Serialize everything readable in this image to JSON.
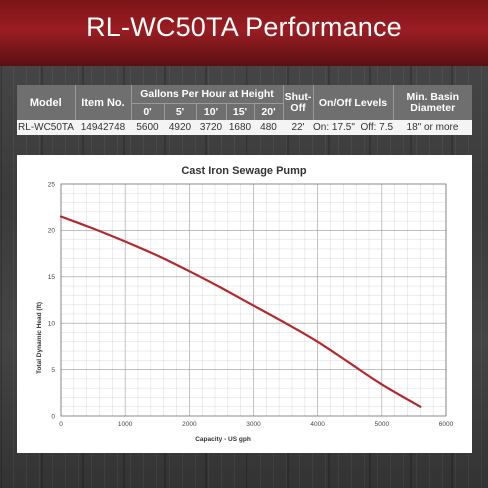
{
  "header": {
    "title": "RL-WC50TA Performance"
  },
  "specs": {
    "col_model": "Model",
    "col_item": "Item No.",
    "col_gph": "Gallons Per Hour at Height",
    "heights": [
      "0'",
      "5'",
      "10'",
      "15'",
      "20'"
    ],
    "col_shutoff_1": "Shut-",
    "col_shutoff_2": "Off",
    "col_levels": "On/Off Levels",
    "col_basin_1": "Min. Basin",
    "col_basin_2": "Diameter",
    "row": {
      "model": "RL-WC50TA",
      "item": "14942748",
      "gph": [
        "5600",
        "4920",
        "3720",
        "1680",
        "480"
      ],
      "shutoff": "22'",
      "levels": "On: 17.5\"  Off: 7.5\"",
      "basin": "18\" or more"
    }
  },
  "chart_data": {
    "type": "line",
    "title": "Cast Iron Sewage Pump",
    "xlabel": "Capacity - US gph",
    "ylabel": "Total Dynamic Head (ft)",
    "xlim": [
      0,
      6000
    ],
    "ylim": [
      0,
      25
    ],
    "x_ticks": [
      "0",
      "1000",
      "2000",
      "3000",
      "4000",
      "5000",
      "6000"
    ],
    "y_ticks": [
      "0",
      "5",
      "10",
      "15",
      "20",
      "25"
    ],
    "grid": true,
    "series": [
      {
        "color": "#b3282d",
        "x": [
          0,
          500,
          1000,
          1500,
          2000,
          2500,
          3000,
          3500,
          4000,
          4500,
          5000,
          5600
        ],
        "y": [
          21.5,
          20.2,
          18.8,
          17.3,
          15.6,
          13.8,
          11.9,
          10.0,
          8.0,
          5.7,
          3.4,
          1.0
        ]
      }
    ]
  }
}
